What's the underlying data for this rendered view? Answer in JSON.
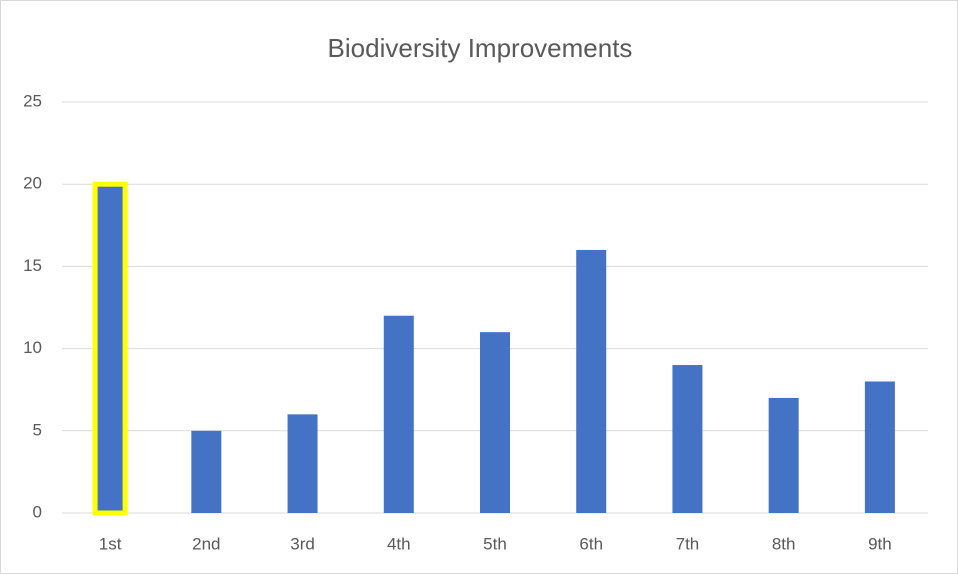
{
  "chart_data": {
    "type": "bar",
    "title": "Biodiversity Improvements",
    "categories": [
      "1st",
      "2nd",
      "3rd",
      "4th",
      "5th",
      "6th",
      "7th",
      "8th",
      "9th"
    ],
    "values": [
      20,
      5,
      6,
      12,
      11,
      16,
      9,
      7,
      8
    ],
    "color": "#4472c4",
    "ylim": [
      0,
      25
    ],
    "yticks": [
      0,
      5,
      10,
      15,
      20,
      25
    ],
    "grid": true,
    "highlight": {
      "index": 0,
      "color": "#ffff00"
    }
  }
}
